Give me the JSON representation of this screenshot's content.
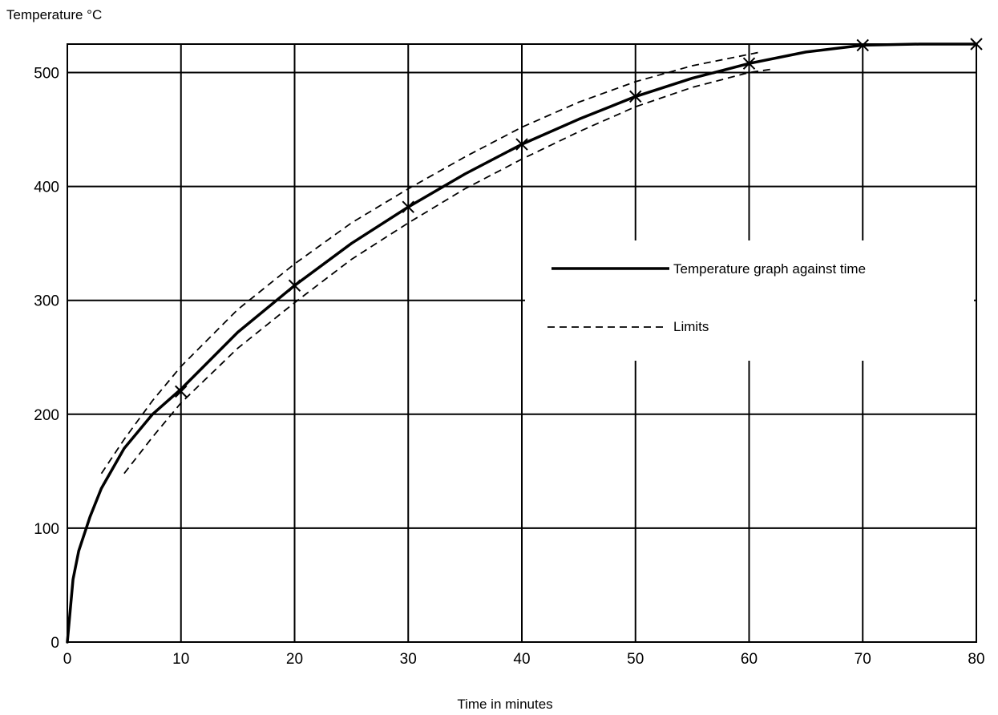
{
  "chart_data": {
    "type": "line",
    "title": "",
    "xlabel": "Time in minutes",
    "ylabel": "Temperature °C",
    "xlim": [
      0,
      80
    ],
    "ylim": [
      0,
      525
    ],
    "grid": true,
    "x_ticks": [
      0,
      10,
      20,
      30,
      40,
      50,
      60,
      70,
      80
    ],
    "y_ticks": [
      0,
      100,
      200,
      300,
      400,
      500
    ],
    "x_tick_labels": [
      "0",
      "10",
      "20",
      "30",
      "40",
      "50",
      "60",
      "70",
      "80"
    ],
    "y_tick_labels": [
      "0",
      "100",
      "200",
      "300",
      "400",
      "500"
    ],
    "legend_position": "right",
    "series": [
      {
        "name": "Temperature graph against time",
        "style": "solid",
        "x": [
          0,
          0.5,
          1,
          2,
          3,
          5,
          7.5,
          10,
          15,
          20,
          25,
          30,
          35,
          40,
          45,
          50,
          55,
          60,
          65,
          70,
          75,
          80
        ],
        "y": [
          0,
          55,
          80,
          110,
          135,
          170,
          200,
          222,
          272,
          313,
          350,
          382,
          411,
          437,
          459,
          479,
          495,
          508,
          518,
          524,
          525,
          525
        ]
      },
      {
        "name": "Limits",
        "style": "dashed",
        "x": [
          3,
          5,
          7.5,
          10,
          15,
          20,
          25,
          30,
          35,
          40,
          45,
          50,
          55,
          60,
          61
        ],
        "y": [
          148,
          178,
          212,
          242,
          292,
          332,
          368,
          398,
          426,
          452,
          474,
          492,
          506,
          516,
          518
        ]
      },
      {
        "name": "Limits",
        "style": "dashed",
        "x": [
          5,
          7.5,
          10,
          15,
          20,
          25,
          30,
          35,
          40,
          45,
          50,
          55,
          60,
          62
        ],
        "y": [
          148,
          180,
          210,
          258,
          298,
          336,
          368,
          398,
          424,
          448,
          470,
          487,
          500,
          503
        ]
      }
    ],
    "markers": {
      "x": [
        10,
        20,
        30,
        40,
        50,
        60,
        70,
        80
      ],
      "y": [
        220,
        313,
        382,
        437,
        479,
        508,
        524,
        525
      ]
    }
  }
}
